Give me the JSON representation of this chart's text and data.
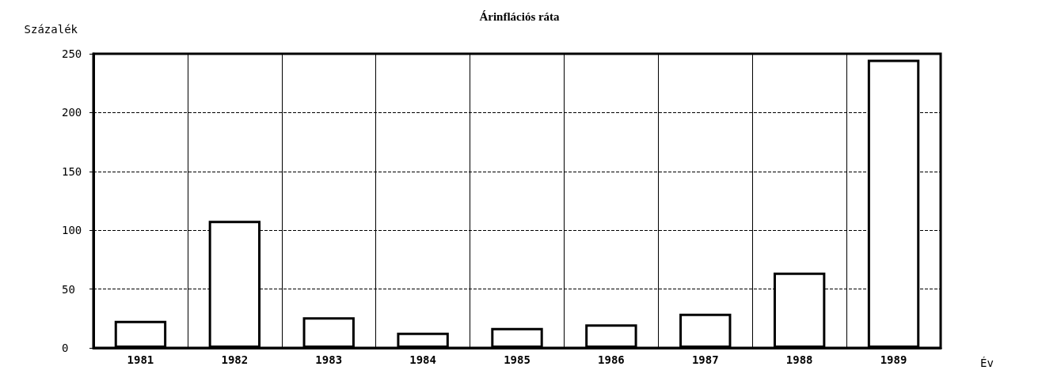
{
  "chart_data": {
    "type": "bar",
    "title": "Árinflációs ráta",
    "ylabel": "Százalék",
    "xlabel": "Év",
    "categories": [
      "1981",
      "1982",
      "1983",
      "1984",
      "1985",
      "1986",
      "1987",
      "1988",
      "1989"
    ],
    "values": [
      23,
      108,
      26,
      13,
      17,
      20,
      29,
      64,
      245
    ],
    "color": "#000000",
    "ylim": [
      0,
      250
    ],
    "yticks": [
      0,
      50,
      100,
      150,
      200,
      250
    ],
    "grid": true,
    "line_style": "dashed"
  }
}
